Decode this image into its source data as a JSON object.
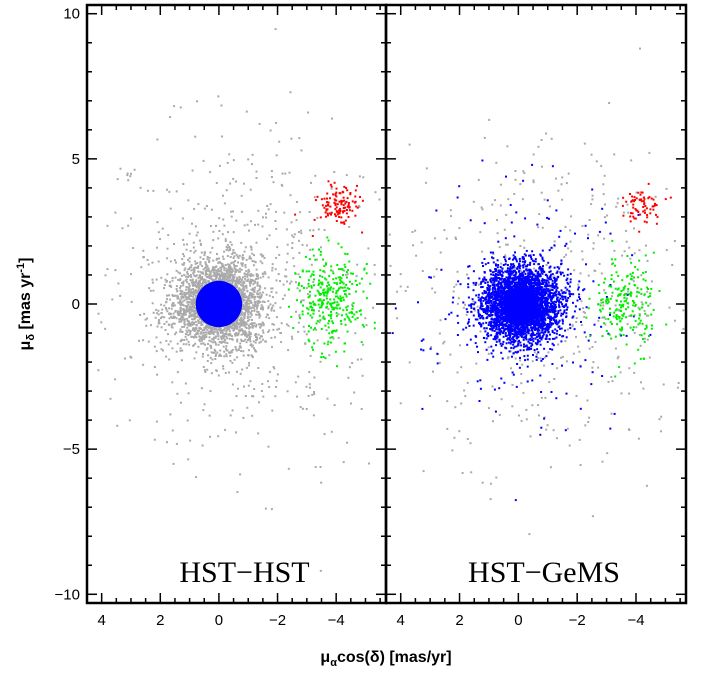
{
  "chart_data": {
    "type": "scatter",
    "xlabel": "μ",
    "xlabel_sub": "α",
    "xlabel_rest": "cos(δ) [mas/yr]",
    "ylabel": "μ",
    "ylabel_sub": "δ",
    "ylabel_rest": " [mas yr",
    "ylabel_sup": "-1",
    "ylabel_close": "]",
    "ylim": [
      -10.3,
      10.3
    ],
    "xlim": [
      4.5,
      -5.7
    ],
    "y_ticks": [
      10,
      5,
      0,
      -5,
      -10
    ],
    "y_tick_labels": [
      "10",
      "5",
      "0",
      "−5",
      "−10"
    ],
    "x_ticks": [
      4,
      2,
      0,
      -2,
      -4
    ],
    "x_tick_labels": [
      "4",
      "2",
      "0",
      "−2",
      "−4"
    ],
    "colors": {
      "field": "#aaaaaa",
      "cluster": "#0000ff",
      "red_group": "#ff0000",
      "green_group": "#00ee00"
    },
    "panels": [
      {
        "label": "HST−HST",
        "cluster_center": [
          0.0,
          0.0
        ],
        "cluster_core_radius": 0.8,
        "cluster_color": "#0000ff",
        "field_color": "#aaaaaa",
        "groups": [
          {
            "name": "red",
            "center": [
              -4.1,
              3.4
            ],
            "spread": [
              0.35,
              0.35
            ],
            "count": 120,
            "color": "#ff0000"
          },
          {
            "name": "green",
            "center": [
              -3.8,
              0.1
            ],
            "spread": [
              0.55,
              0.8
            ],
            "count": 320,
            "color": "#00ee00"
          }
        ],
        "field_core_count": 2600,
        "field_halo_count": 600
      },
      {
        "label": "HST−GeMS",
        "cluster_center": [
          -0.1,
          0.0
        ],
        "cluster_core_radius": 0.6,
        "cluster_color": "#0000ff",
        "field_color": "#aaaaaa",
        "groups": [
          {
            "name": "red",
            "center": [
              -4.3,
              3.4
            ],
            "spread": [
              0.3,
              0.3
            ],
            "count": 70,
            "color": "#ff0000"
          },
          {
            "name": "green",
            "center": [
              -3.6,
              0.0
            ],
            "spread": [
              0.5,
              0.8
            ],
            "count": 200,
            "color": "#00ee00"
          }
        ],
        "cluster_scatter_count": 3500,
        "cluster_outlier_count": 180,
        "field_halo_count": 450
      }
    ]
  }
}
